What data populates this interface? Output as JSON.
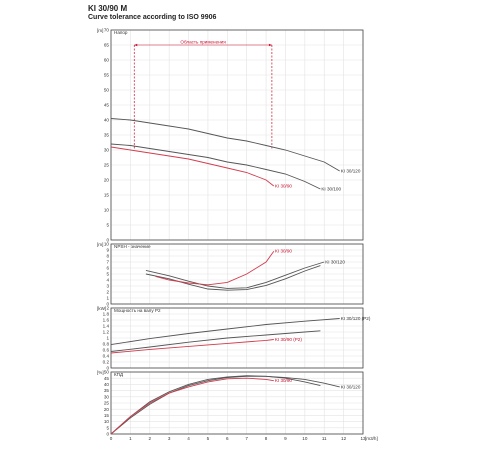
{
  "header": {
    "title": "KI 30/90 M",
    "subtitle": "Curve tolerance according to ISO 9906"
  },
  "colors": {
    "dark": "#555555",
    "red": "#d23c4e",
    "grid": "#e3e3e3",
    "annot": "#c8102e"
  },
  "chart_data": [
    {
      "type": "line",
      "title": "",
      "unit": "[m]",
      "ylabel": "Напор",
      "xlabel": "",
      "xlim": [
        0,
        13
      ],
      "ylim": [
        0,
        70
      ],
      "yticks": [
        0,
        5,
        10,
        15,
        20,
        25,
        30,
        35,
        40,
        45,
        50,
        55,
        60,
        65,
        70
      ],
      "grid": true,
      "annotation": {
        "label": "Область применения",
        "x_range": [
          1.2,
          8.3
        ],
        "y_top": 65,
        "y_bottom": 30
      },
      "series": [
        {
          "name": "KI 30/120",
          "x": [
            0,
            1,
            2,
            3,
            4,
            5,
            6,
            7,
            8,
            9,
            10,
            11,
            11.8
          ],
          "y": [
            40.5,
            40,
            39,
            38,
            37,
            35.5,
            34,
            33,
            31.5,
            30,
            28,
            26,
            23
          ]
        },
        {
          "name": "KI 30/100",
          "x": [
            0,
            1,
            2,
            3,
            4,
            5,
            6,
            7,
            8,
            9,
            10,
            10.8
          ],
          "y": [
            32,
            31.5,
            30.5,
            29.5,
            28.5,
            27.5,
            26,
            25,
            23.5,
            22,
            19.5,
            17
          ]
        },
        {
          "name": "KI 30/90",
          "x": [
            0,
            1,
            2,
            3,
            4,
            5,
            6,
            7,
            8,
            8.4
          ],
          "y": [
            31,
            30,
            29,
            28,
            27,
            25.5,
            24,
            22.5,
            20,
            18
          ]
        }
      ]
    },
    {
      "type": "line",
      "title": "",
      "unit": "[m]",
      "ylabel": "NPSH - значение",
      "xlabel": "",
      "xlim": [
        0,
        13
      ],
      "ylim": [
        0,
        10
      ],
      "yticks": [
        0,
        1,
        2,
        3,
        4,
        5,
        6,
        7,
        8,
        9,
        10
      ],
      "grid": true,
      "series": [
        {
          "name": "KI 30/120",
          "x": [
            1.8,
            3,
            4,
            5,
            6,
            7,
            8,
            9,
            10,
            11
          ],
          "y": [
            5.6,
            4.7,
            3.8,
            3.0,
            2.6,
            2.7,
            3.6,
            4.8,
            6.0,
            7.0
          ]
        },
        {
          "name": "",
          "x": [
            1.8,
            3,
            4,
            5,
            6,
            7,
            8,
            9,
            10,
            10.8
          ],
          "y": [
            5.0,
            4.2,
            3.3,
            2.5,
            2.3,
            2.4,
            3.1,
            4.2,
            5.5,
            6.4
          ]
        },
        {
          "name": "KI 30/90",
          "x": [
            2.3,
            3,
            4,
            5,
            6,
            7,
            8,
            8.4
          ],
          "y": [
            4.6,
            4.0,
            3.5,
            3.2,
            3.6,
            5.0,
            7.0,
            8.8
          ]
        }
      ]
    },
    {
      "type": "line",
      "title": "",
      "unit": "[kW]",
      "ylabel": "Мощность на валу P2",
      "xlabel": "",
      "xlim": [
        0,
        13
      ],
      "ylim": [
        0,
        2
      ],
      "yticks": [
        0,
        0.2,
        0.4,
        0.6,
        0.8,
        1,
        1.2,
        1.4,
        1.6,
        1.8,
        2
      ],
      "grid": true,
      "series": [
        {
          "name": "KI 30/120 (P2)",
          "x": [
            0,
            2,
            4,
            6,
            8,
            10,
            11.8
          ],
          "y": [
            0.78,
            0.98,
            1.15,
            1.3,
            1.45,
            1.56,
            1.65
          ]
        },
        {
          "name": "",
          "x": [
            0,
            2,
            4,
            6,
            8,
            10,
            10.8
          ],
          "y": [
            0.55,
            0.7,
            0.86,
            1.0,
            1.1,
            1.2,
            1.24
          ]
        },
        {
          "name": "KI 30/90 (P2)",
          "x": [
            0,
            2,
            4,
            6,
            8,
            8.4
          ],
          "y": [
            0.5,
            0.62,
            0.72,
            0.82,
            0.92,
            0.95
          ]
        }
      ]
    },
    {
      "type": "line",
      "title": "",
      "unit": "[%]",
      "ylabel": "КПД",
      "xlabel": "",
      "xunit": "[m3/h]",
      "xlim": [
        0,
        13
      ],
      "xticks": [
        0,
        1,
        2,
        3,
        4,
        5,
        6,
        7,
        8,
        9,
        10,
        11,
        12,
        13
      ],
      "ylim": [
        0,
        50
      ],
      "yticks": [
        0,
        5,
        10,
        15,
        20,
        25,
        30,
        35,
        40,
        45,
        50
      ],
      "grid": true,
      "series": [
        {
          "name": "KI 30/120",
          "x": [
            0,
            1,
            2,
            3,
            4,
            5,
            6,
            7,
            8,
            9,
            10,
            11,
            11.8
          ],
          "y": [
            0,
            13,
            24,
            33,
            39,
            43,
            45.5,
            46.5,
            46.5,
            45.5,
            44,
            41,
            38
          ]
        },
        {
          "name": "",
          "x": [
            0,
            1,
            2,
            3,
            4,
            5,
            6,
            7,
            8,
            9,
            10,
            10.8
          ],
          "y": [
            0,
            14,
            26,
            34,
            40,
            44,
            46,
            47,
            46.5,
            45,
            42,
            39
          ]
        },
        {
          "name": "KI 30/90",
          "x": [
            0,
            1,
            2,
            3,
            4,
            5,
            6,
            7,
            8,
            8.4
          ],
          "y": [
            0,
            14,
            25,
            33,
            38,
            42,
            44.5,
            45,
            44,
            43
          ]
        }
      ]
    }
  ]
}
